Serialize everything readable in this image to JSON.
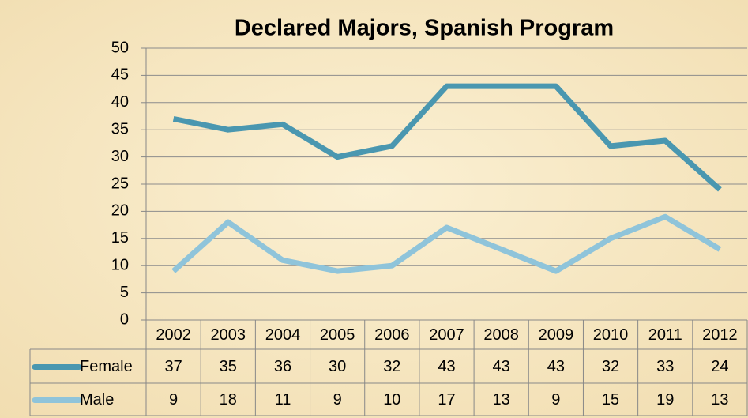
{
  "chart_data": {
    "type": "line",
    "title": "Declared Majors, Spanish Program",
    "categories": [
      "2002",
      "2003",
      "2004",
      "2005",
      "2006",
      "2007",
      "2008",
      "2009",
      "2010",
      "2011",
      "2012"
    ],
    "series": [
      {
        "name": "Female",
        "color": "#4a97b0",
        "values": [
          37,
          35,
          36,
          30,
          32,
          43,
          43,
          43,
          32,
          33,
          24
        ]
      },
      {
        "name": "Male",
        "color": "#8fc4da",
        "values": [
          9,
          18,
          11,
          9,
          10,
          17,
          13,
          9,
          15,
          19,
          13
        ]
      }
    ],
    "ylim": [
      0,
      50
    ],
    "yticks": [
      0,
      5,
      10,
      15,
      20,
      25,
      30,
      35,
      40,
      45,
      50
    ],
    "grid": true,
    "data_table": true
  }
}
